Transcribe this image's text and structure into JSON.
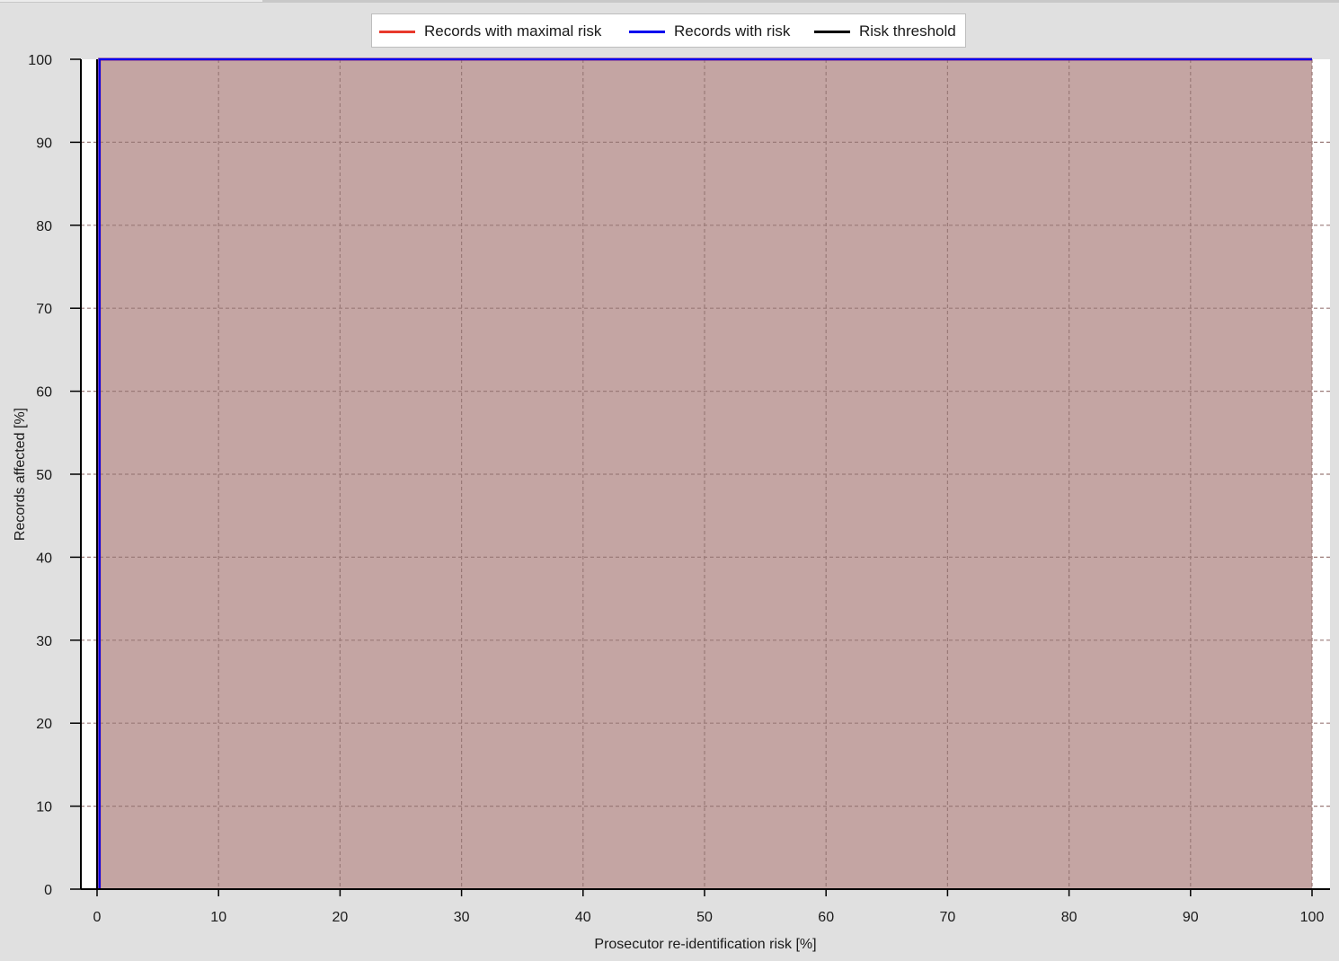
{
  "chart_data": {
    "type": "line",
    "title": "",
    "xlabel": "Prosecutor re-identification risk [%]",
    "ylabel": "Records affected [%]",
    "xlim": [
      0,
      100
    ],
    "ylim": [
      0,
      100
    ],
    "x_ticks": [
      0,
      10,
      20,
      30,
      40,
      50,
      60,
      70,
      80,
      90,
      100
    ],
    "y_ticks": [
      0,
      10,
      20,
      30,
      40,
      50,
      60,
      70,
      80,
      90,
      100
    ],
    "grid": true,
    "legend_position": "top-center",
    "series": [
      {
        "name": "Records with maximal risk",
        "color": "#e8392c",
        "points": [
          [
            0.2,
            0
          ],
          [
            0.2,
            100
          ],
          [
            100,
            100
          ]
        ]
      },
      {
        "name": "Records with risk",
        "color": "#0000ee",
        "points": [
          [
            0.2,
            0
          ],
          [
            0.2,
            100
          ],
          [
            100,
            100
          ]
        ]
      },
      {
        "name": "Risk threshold",
        "color": "#000000",
        "points": [
          [
            0,
            0
          ],
          [
            0,
            100
          ]
        ]
      }
    ],
    "shaded_region": {
      "x_range": [
        0.2,
        100
      ],
      "y_range": [
        0,
        100
      ],
      "color": "#c4a5a3"
    }
  }
}
